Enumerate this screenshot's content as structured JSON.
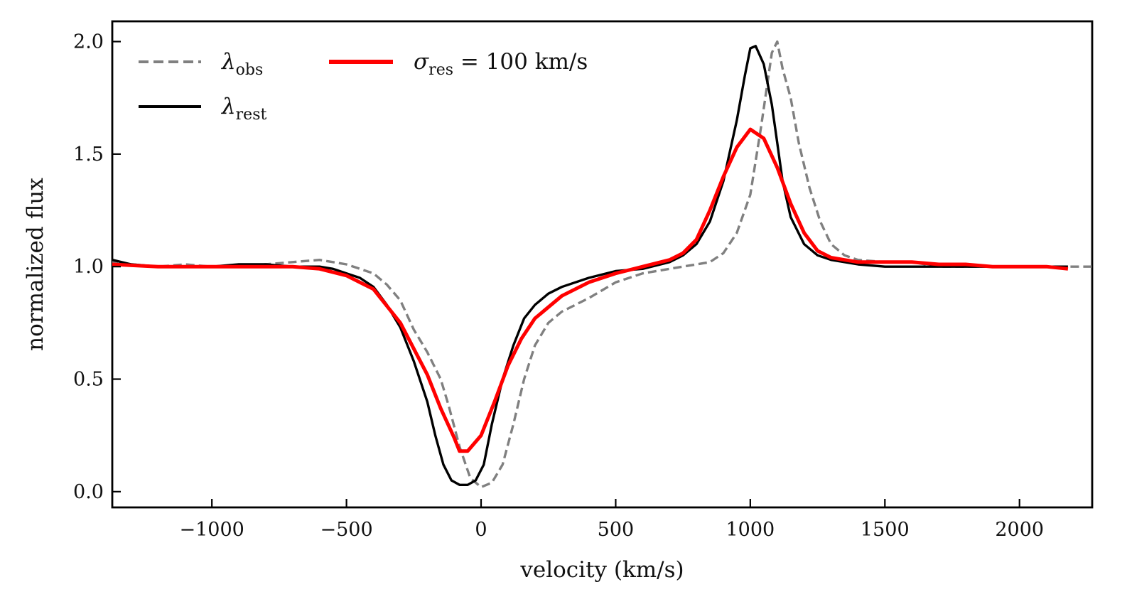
{
  "chart_data": {
    "type": "line",
    "xlabel": "velocity (km/s)",
    "ylabel": "normalized flux",
    "xlim": [
      -1370,
      2270
    ],
    "ylim": [
      -0.07,
      2.09
    ],
    "xticks": [
      -1000,
      -500,
      0,
      500,
      1000,
      1500,
      2000
    ],
    "xtick_labels": [
      "−1000",
      "−500",
      "0",
      "500",
      "1000",
      "1500",
      "2000"
    ],
    "yticks": [
      0.0,
      0.5,
      1.0,
      1.5,
      2.0
    ],
    "ytick_labels": [
      "0.0",
      "0.5",
      "1.0",
      "1.5",
      "2.0"
    ],
    "grid": false,
    "legend_position": "top-left",
    "legend": {
      "obs": {
        "symbol": "λ",
        "sub": "obs"
      },
      "rest": {
        "symbol": "λ",
        "sub": "rest"
      },
      "model": {
        "symbol": "σ",
        "sub": "res",
        "rest_text": " = 100 km/s"
      }
    },
    "series": [
      {
        "id": "lambda_obs",
        "color": "#808080",
        "style": "dashed",
        "x": [
          -1380,
          -1300,
          -1200,
          -1100,
          -1000,
          -900,
          -800,
          -700,
          -600,
          -500,
          -450,
          -400,
          -350,
          -300,
          -250,
          -200,
          -150,
          -120,
          -80,
          -40,
          0,
          40,
          80,
          120,
          160,
          200,
          250,
          300,
          400,
          500,
          600,
          700,
          800,
          850,
          900,
          950,
          1000,
          1040,
          1080,
          1100,
          1120,
          1150,
          1180,
          1220,
          1260,
          1300,
          1350,
          1400,
          1500,
          1600,
          1700,
          1800,
          1900,
          2000,
          2100,
          2200,
          2270
        ],
        "y": [
          1.02,
          1.01,
          1.0,
          1.01,
          1.0,
          1.0,
          1.01,
          1.02,
          1.03,
          1.01,
          0.99,
          0.97,
          0.92,
          0.85,
          0.72,
          0.62,
          0.5,
          0.38,
          0.2,
          0.06,
          0.02,
          0.04,
          0.12,
          0.3,
          0.5,
          0.65,
          0.75,
          0.8,
          0.86,
          0.93,
          0.97,
          0.99,
          1.01,
          1.02,
          1.06,
          1.15,
          1.32,
          1.62,
          1.95,
          2.0,
          1.88,
          1.75,
          1.55,
          1.35,
          1.2,
          1.1,
          1.05,
          1.03,
          1.02,
          1.02,
          1.0,
          1.0,
          1.0,
          1.0,
          1.0,
          1.0,
          1.0
        ]
      },
      {
        "id": "lambda_rest",
        "color": "#000000",
        "style": "solid",
        "x": [
          -1370,
          -1300,
          -1200,
          -1100,
          -1000,
          -900,
          -800,
          -700,
          -600,
          -550,
          -500,
          -450,
          -400,
          -350,
          -300,
          -250,
          -200,
          -170,
          -140,
          -110,
          -80,
          -50,
          -20,
          10,
          40,
          80,
          120,
          160,
          200,
          250,
          300,
          400,
          500,
          600,
          700,
          750,
          800,
          850,
          900,
          950,
          980,
          1000,
          1020,
          1050,
          1080,
          1100,
          1120,
          1150,
          1200,
          1250,
          1300,
          1350,
          1400,
          1500,
          1600,
          1700,
          1800,
          1900,
          2000,
          2100,
          2180
        ],
        "y": [
          1.03,
          1.01,
          1.0,
          1.0,
          1.0,
          1.01,
          1.01,
          1.0,
          1.0,
          0.99,
          0.97,
          0.95,
          0.91,
          0.83,
          0.73,
          0.58,
          0.4,
          0.25,
          0.12,
          0.05,
          0.03,
          0.03,
          0.05,
          0.12,
          0.3,
          0.5,
          0.65,
          0.77,
          0.83,
          0.88,
          0.91,
          0.95,
          0.98,
          0.99,
          1.02,
          1.05,
          1.1,
          1.2,
          1.38,
          1.65,
          1.85,
          1.97,
          1.98,
          1.9,
          1.72,
          1.55,
          1.38,
          1.22,
          1.1,
          1.05,
          1.03,
          1.02,
          1.01,
          1.0,
          1.0,
          1.0,
          1.0,
          1.0,
          1.0,
          1.0,
          1.0
        ]
      },
      {
        "id": "sigma_res",
        "color": "#ff0000",
        "style": "solid",
        "x": [
          -1370,
          -1200,
          -1000,
          -800,
          -700,
          -600,
          -500,
          -400,
          -300,
          -200,
          -150,
          -100,
          -80,
          -50,
          0,
          50,
          100,
          150,
          200,
          300,
          400,
          500,
          600,
          700,
          750,
          800,
          850,
          900,
          950,
          1000,
          1050,
          1100,
          1150,
          1200,
          1250,
          1300,
          1350,
          1400,
          1500,
          1600,
          1700,
          1800,
          1900,
          2000,
          2100,
          2180
        ],
        "y": [
          1.01,
          1.0,
          1.0,
          1.0,
          1.0,
          0.99,
          0.96,
          0.9,
          0.75,
          0.52,
          0.37,
          0.24,
          0.18,
          0.18,
          0.25,
          0.4,
          0.56,
          0.68,
          0.77,
          0.87,
          0.93,
          0.97,
          1.0,
          1.03,
          1.06,
          1.12,
          1.25,
          1.4,
          1.53,
          1.61,
          1.57,
          1.44,
          1.28,
          1.15,
          1.07,
          1.04,
          1.03,
          1.02,
          1.02,
          1.02,
          1.01,
          1.01,
          1.0,
          1.0,
          1.0,
          0.99
        ]
      }
    ]
  }
}
